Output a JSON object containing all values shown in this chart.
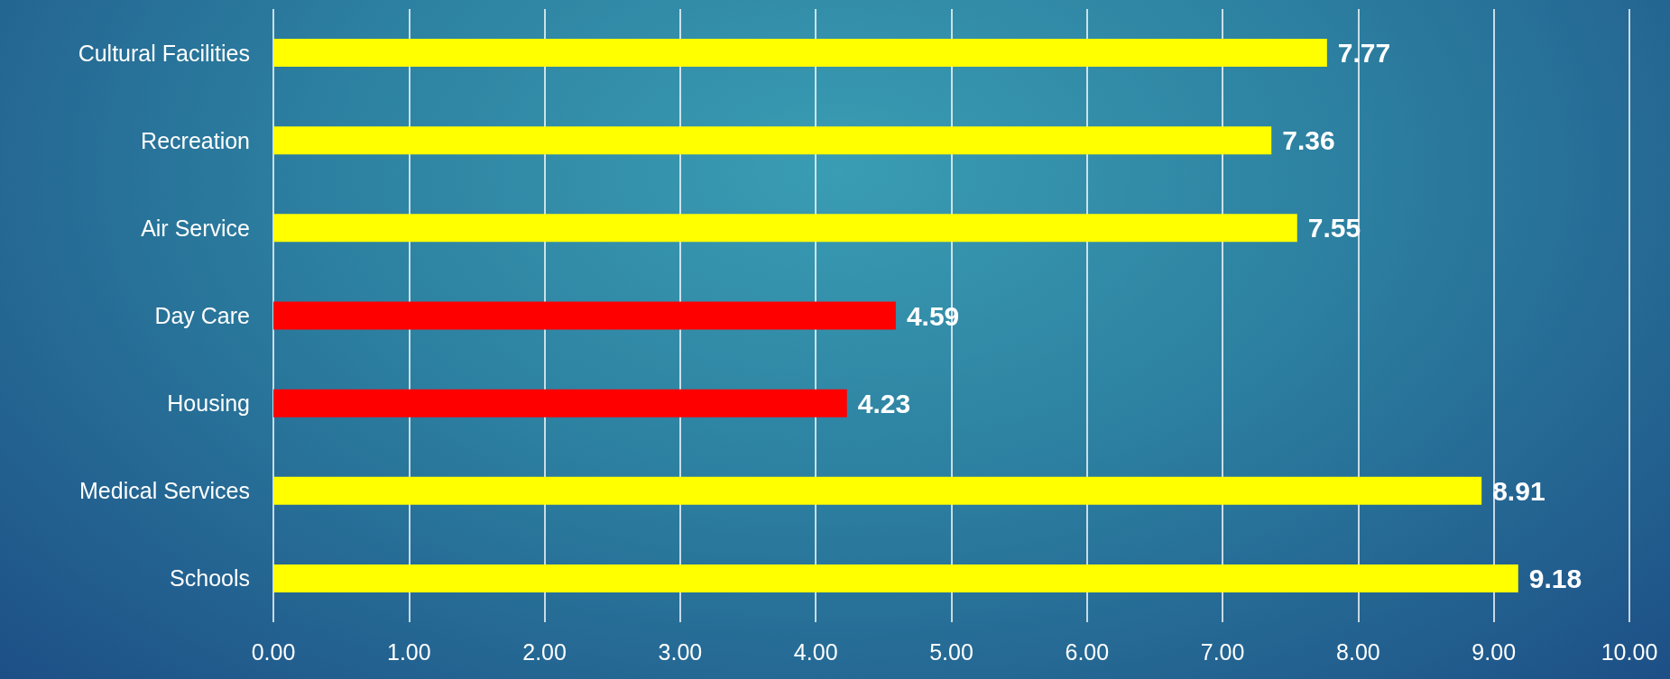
{
  "chart_data": {
    "type": "bar",
    "orientation": "horizontal",
    "categories": [
      "Cultural Facilities",
      "Recreation",
      "Air Service",
      "Day Care",
      "Housing",
      "Medical Services",
      "Schools"
    ],
    "values": [
      7.77,
      7.36,
      7.55,
      4.59,
      4.23,
      8.91,
      9.18
    ],
    "colors": [
      "#ffff00",
      "#ffff00",
      "#ffff00",
      "#ff0000",
      "#ff0000",
      "#ffff00",
      "#ffff00"
    ],
    "data_labels": true,
    "xlim": [
      0,
      10
    ],
    "xticks": [
      {
        "value": 0,
        "label": "0.00"
      },
      {
        "value": 1,
        "label": "1.00"
      },
      {
        "value": 2,
        "label": "2.00"
      },
      {
        "value": 3,
        "label": "3.00"
      },
      {
        "value": 4,
        "label": "4.00"
      },
      {
        "value": 5,
        "label": "5.00"
      },
      {
        "value": 6,
        "label": "6.00"
      },
      {
        "value": 7,
        "label": "7.00"
      },
      {
        "value": 8,
        "label": "8.00"
      },
      {
        "value": 9,
        "label": "9.00"
      },
      {
        "value": 10,
        "label": "10.00"
      }
    ],
    "grid": "x"
  }
}
